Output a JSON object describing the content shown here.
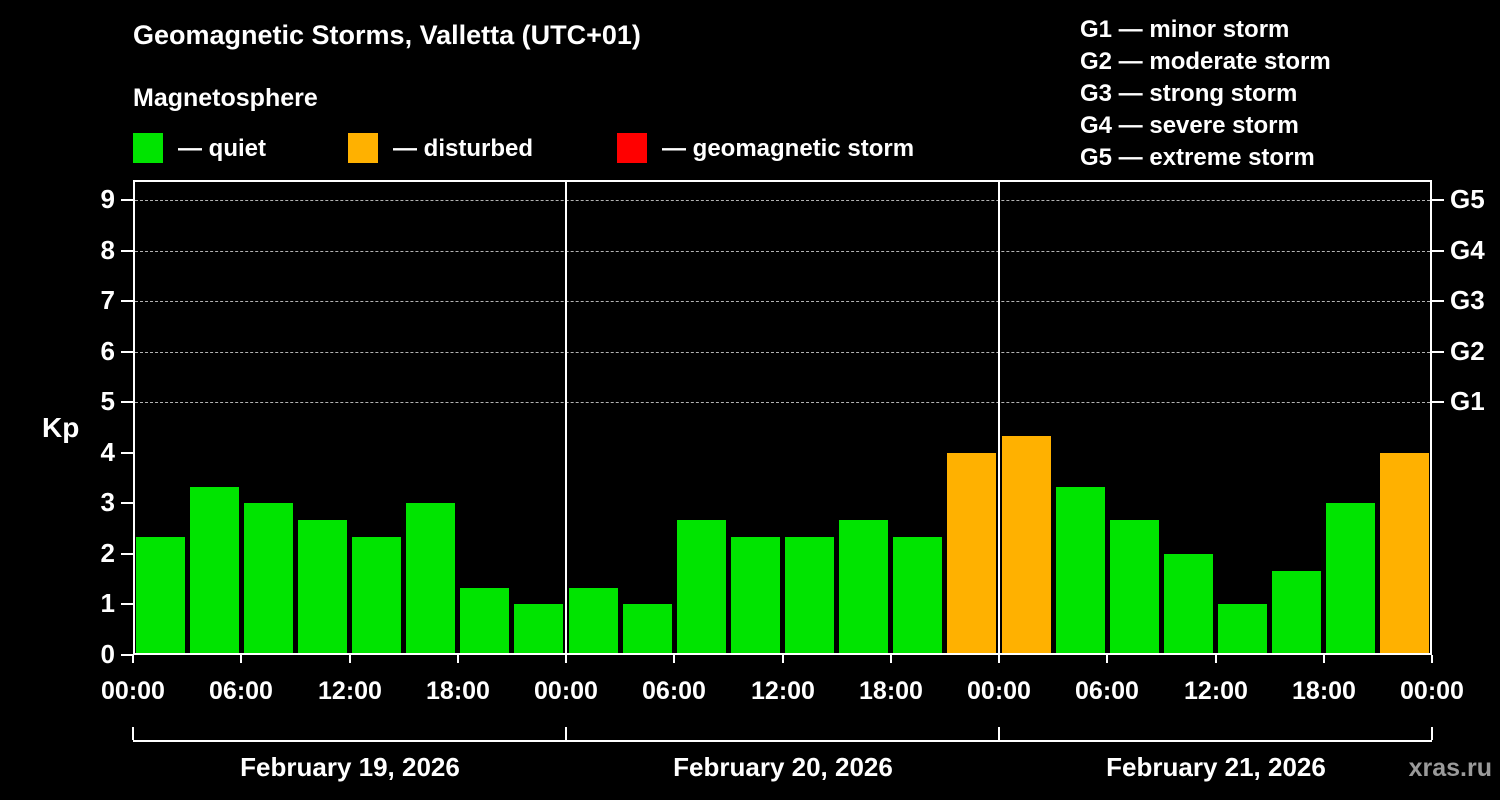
{
  "header": {
    "title": "Geomagnetic Storms, Valletta (UTC+01)",
    "subtitle": "Magnetosphere"
  },
  "legend": {
    "items": [
      {
        "key": "quiet",
        "label": "— quiet"
      },
      {
        "key": "disturbed",
        "label": "— disturbed"
      },
      {
        "key": "storm",
        "label": "— geomagnetic storm"
      }
    ]
  },
  "storm_scale_legend": {
    "items": [
      "G1 — minor storm",
      "G2 — moderate storm",
      "G3 — strong storm",
      "G4 — severe storm",
      "G5 — extreme storm"
    ]
  },
  "watermark": "xras.ru",
  "chart_data": {
    "type": "bar",
    "title": "Geomagnetic Storms, Valletta (UTC+01)",
    "subtitle": "Magnetosphere",
    "ylabel": "Kp",
    "ylim": [
      0,
      9
    ],
    "y_ticks": [
      0,
      1,
      2,
      3,
      4,
      5,
      6,
      7,
      8,
      9
    ],
    "grid_dashed_levels": [
      5,
      6,
      7,
      8,
      9
    ],
    "right_axis_ticks": [
      {
        "label": "G1",
        "value": 5
      },
      {
        "label": "G2",
        "value": 6
      },
      {
        "label": "G3",
        "value": 7
      },
      {
        "label": "G4",
        "value": 8
      },
      {
        "label": "G5",
        "value": 9
      }
    ],
    "x_tick_labels": [
      "00:00",
      "06:00",
      "12:00",
      "18:00",
      "00:00",
      "06:00",
      "12:00",
      "18:00",
      "00:00",
      "06:00",
      "12:00",
      "18:00",
      "00:00"
    ],
    "interval_hours": 3,
    "colors": {
      "quiet": "#00e400",
      "disturbed": "#ffb100",
      "storm": "#ff0000"
    },
    "days": [
      {
        "date": "February 19, 2026",
        "values": [
          2.33,
          3.33,
          3.0,
          2.67,
          2.33,
          3.0,
          1.33,
          1.0
        ],
        "status": [
          "quiet",
          "quiet",
          "quiet",
          "quiet",
          "quiet",
          "quiet",
          "quiet",
          "quiet"
        ]
      },
      {
        "date": "February 20, 2026",
        "values": [
          1.33,
          1.0,
          2.67,
          2.33,
          2.33,
          2.67,
          2.33,
          4.0
        ],
        "status": [
          "quiet",
          "quiet",
          "quiet",
          "quiet",
          "quiet",
          "quiet",
          "quiet",
          "disturbed"
        ]
      },
      {
        "date": "February 21, 2026",
        "values": [
          4.33,
          3.33,
          2.67,
          2.0,
          1.0,
          1.67,
          3.0,
          4.0
        ],
        "status": [
          "disturbed",
          "quiet",
          "quiet",
          "quiet",
          "quiet",
          "quiet",
          "quiet",
          "disturbed"
        ]
      }
    ]
  }
}
